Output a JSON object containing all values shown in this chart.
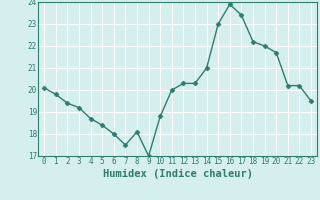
{
  "xlabel": "Humidex (Indice chaleur)",
  "x": [
    0,
    1,
    2,
    3,
    4,
    5,
    6,
    7,
    8,
    9,
    10,
    11,
    12,
    13,
    14,
    15,
    16,
    17,
    18,
    19,
    20,
    21,
    22,
    23
  ],
  "y": [
    20.1,
    19.8,
    19.4,
    19.2,
    18.7,
    18.4,
    18.0,
    17.5,
    18.1,
    17.0,
    18.8,
    20.0,
    20.3,
    20.3,
    21.0,
    23.0,
    23.9,
    23.4,
    22.2,
    22.0,
    21.7,
    20.2,
    20.2,
    19.5
  ],
  "line_color": "#2e7d6e",
  "marker": "D",
  "markersize": 2.5,
  "linewidth": 1.0,
  "ylim": [
    17,
    24
  ],
  "yticks": [
    17,
    18,
    19,
    20,
    21,
    22,
    23,
    24
  ],
  "xticks": [
    0,
    1,
    2,
    3,
    4,
    5,
    6,
    7,
    8,
    9,
    10,
    11,
    12,
    13,
    14,
    15,
    16,
    17,
    18,
    19,
    20,
    21,
    22,
    23
  ],
  "bg_color": "#d5eeee",
  "grid_color": "#ffffff",
  "axis_color": "#2e7d6e",
  "tick_fontsize": 5.5,
  "label_fontsize": 7.5
}
